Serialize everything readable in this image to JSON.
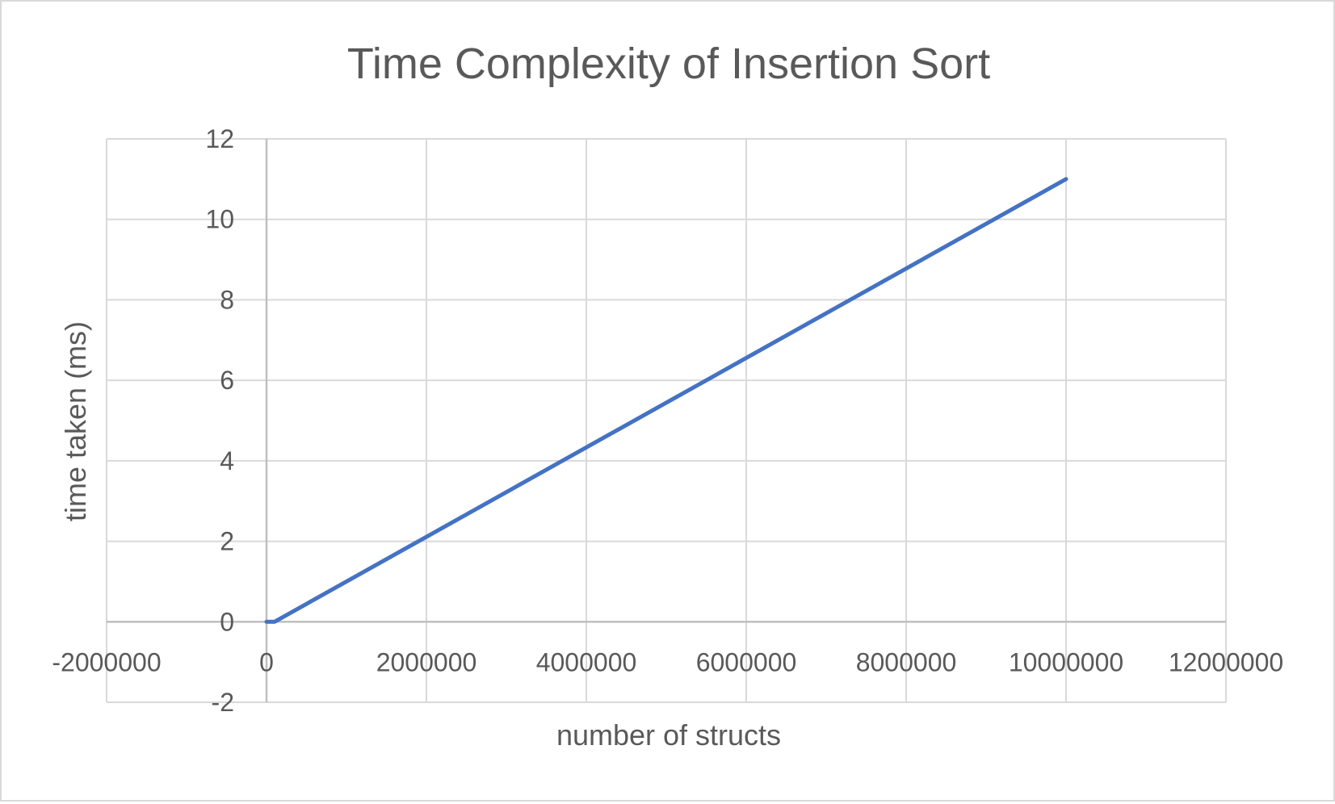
{
  "chart_data": {
    "type": "scatter",
    "title": "Time Complexity of Insertion Sort",
    "xlabel": "number of structs",
    "ylabel": "time taken (ms)",
    "xlim": [
      -2000000,
      12000000
    ],
    "ylim": [
      -2,
      12
    ],
    "x_ticks": [
      -2000000,
      0,
      2000000,
      4000000,
      6000000,
      8000000,
      10000000,
      12000000
    ],
    "y_ticks": [
      -2,
      0,
      2,
      4,
      6,
      8,
      10,
      12
    ],
    "x_tick_labels": [
      "-2000000",
      "0",
      "2000000",
      "4000000",
      "6000000",
      "8000000",
      "10000000",
      "12000000"
    ],
    "y_tick_labels": [
      "-2",
      "0",
      "2",
      "4",
      "6",
      "8",
      "10",
      "12"
    ],
    "grid": true,
    "legend": "none",
    "series": [
      {
        "color": "#4472c4",
        "mode": "line",
        "x": [
          0,
          10000,
          100000,
          10000000
        ],
        "y": [
          0,
          0,
          0,
          11
        ]
      }
    ]
  }
}
